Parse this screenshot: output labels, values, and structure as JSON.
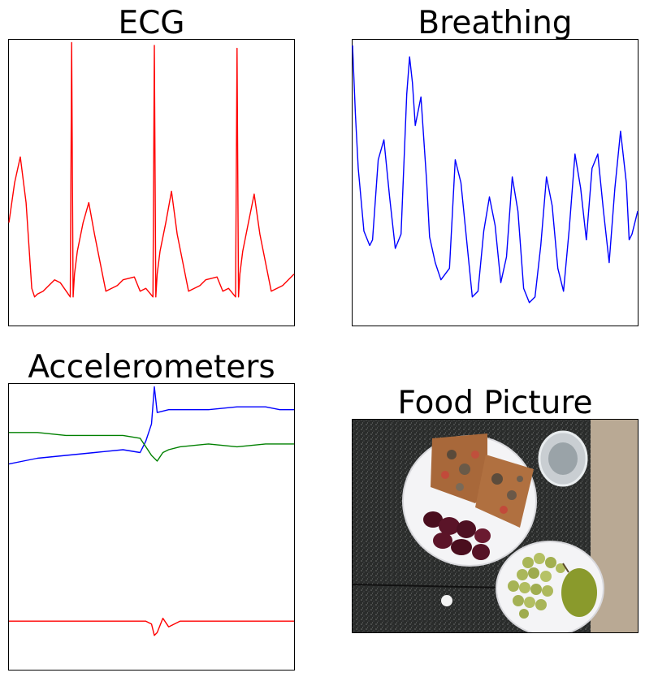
{
  "panels": {
    "ecg": {
      "title": "ECG"
    },
    "breathing": {
      "title": "Breathing"
    },
    "accelerometers": {
      "title": "Accelerometers"
    },
    "food": {
      "title": "Food Picture"
    }
  },
  "chart_data": [
    {
      "type": "line",
      "title": "ECG",
      "xlabel": "",
      "ylabel": "",
      "axes_ticks": false,
      "series": [
        {
          "color": "#ff0000",
          "x": [
            0,
            2,
            4,
            6,
            8,
            9,
            10,
            12,
            14,
            16,
            18,
            21.5,
            22,
            22.5,
            23,
            24,
            26,
            28,
            30,
            34,
            38,
            40,
            44,
            46,
            48,
            50.5,
            51,
            51.5,
            52,
            53,
            55,
            57,
            59,
            63,
            67,
            69,
            73,
            75,
            77,
            79.5,
            80,
            80.5,
            81,
            82,
            84,
            86,
            88,
            92,
            96,
            100
          ],
          "y": [
            0.36,
            0.5,
            0.59,
            0.43,
            0.13,
            0.1,
            0.11,
            0.12,
            0.14,
            0.16,
            0.15,
            0.1,
            0.99,
            0.1,
            0.18,
            0.26,
            0.36,
            0.43,
            0.32,
            0.12,
            0.14,
            0.16,
            0.17,
            0.12,
            0.13,
            0.1,
            0.98,
            0.1,
            0.18,
            0.26,
            0.36,
            0.47,
            0.32,
            0.12,
            0.14,
            0.16,
            0.17,
            0.12,
            0.13,
            0.1,
            0.97,
            0.1,
            0.18,
            0.26,
            0.36,
            0.46,
            0.32,
            0.12,
            0.14,
            0.18
          ]
        }
      ]
    },
    {
      "type": "line",
      "title": "Breathing",
      "xlabel": "",
      "ylabel": "",
      "axes_ticks": false,
      "series": [
        {
          "color": "#0000ff",
          "x": [
            0,
            1,
            2,
            4,
            6,
            7,
            9,
            11,
            13,
            15,
            17,
            19,
            20,
            21,
            22,
            24,
            26,
            27,
            29,
            31,
            34,
            36,
            38,
            40,
            42,
            44,
            46,
            48,
            50,
            52,
            54,
            56,
            58,
            60,
            62,
            64,
            66,
            68,
            70,
            72,
            74,
            76,
            78,
            80,
            82,
            84,
            86,
            88,
            90,
            92,
            94,
            96,
            97,
            98,
            100
          ],
          "y": [
            0.98,
            0.74,
            0.55,
            0.33,
            0.28,
            0.3,
            0.58,
            0.65,
            0.45,
            0.27,
            0.32,
            0.81,
            0.94,
            0.85,
            0.7,
            0.8,
            0.5,
            0.31,
            0.22,
            0.16,
            0.2,
            0.58,
            0.5,
            0.3,
            0.1,
            0.12,
            0.33,
            0.45,
            0.35,
            0.15,
            0.24,
            0.52,
            0.4,
            0.13,
            0.08,
            0.1,
            0.28,
            0.52,
            0.42,
            0.2,
            0.12,
            0.34,
            0.6,
            0.48,
            0.3,
            0.55,
            0.6,
            0.4,
            0.22,
            0.48,
            0.68,
            0.5,
            0.3,
            0.32,
            0.4
          ]
        }
      ]
    },
    {
      "type": "line",
      "title": "Accelerometers",
      "xlabel": "",
      "ylabel": "",
      "axes_ticks": false,
      "series": [
        {
          "color": "#0000ff",
          "x": [
            0,
            5,
            10,
            20,
            30,
            40,
            46,
            48,
            50,
            51,
            52,
            56,
            60,
            70,
            80,
            90,
            95,
            100
          ],
          "y": [
            0.72,
            0.73,
            0.74,
            0.75,
            0.76,
            0.77,
            0.76,
            0.8,
            0.86,
            0.99,
            0.9,
            0.91,
            0.91,
            0.91,
            0.92,
            0.92,
            0.91,
            0.91
          ]
        },
        {
          "color": "#008000",
          "x": [
            0,
            10,
            20,
            30,
            40,
            46,
            48,
            50,
            52,
            54,
            56,
            60,
            70,
            80,
            90,
            100
          ],
          "y": [
            0.83,
            0.83,
            0.82,
            0.82,
            0.82,
            0.81,
            0.78,
            0.75,
            0.73,
            0.76,
            0.77,
            0.78,
            0.79,
            0.78,
            0.79,
            0.79
          ]
        },
        {
          "color": "#ff0000",
          "x": [
            0,
            10,
            20,
            30,
            40,
            48,
            50,
            51,
            52,
            54,
            56,
            58,
            60,
            70,
            80,
            90,
            100
          ],
          "y": [
            0.17,
            0.17,
            0.17,
            0.17,
            0.17,
            0.17,
            0.16,
            0.12,
            0.13,
            0.18,
            0.15,
            0.16,
            0.17,
            0.17,
            0.17,
            0.17,
            0.17
          ]
        }
      ]
    }
  ],
  "food_picture": {
    "items": [
      "pizza-slices",
      "sliced-beets",
      "green-grapes",
      "pear",
      "glass-of-water"
    ]
  }
}
